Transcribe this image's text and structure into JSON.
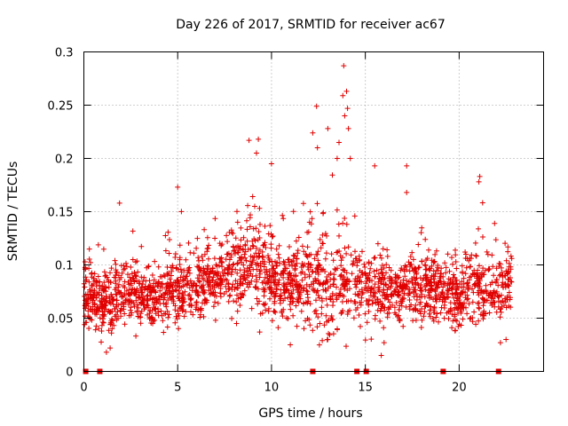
{
  "chart_data": {
    "type": "scatter",
    "title": "Day 226 of 2017, SRMTID for receiver ac67",
    "xlabel": "GPS time / hours",
    "ylabel": "SRMTID / TECUs",
    "xlim": [
      0,
      24.5
    ],
    "ylim": [
      0,
      0.3
    ],
    "grid": true,
    "marker": "+",
    "color": "#e00000",
    "x_ticks": [
      0,
      5,
      10,
      15,
      20
    ],
    "x_tick_labels": [
      "0",
      "5",
      "10",
      "15",
      "20"
    ],
    "y_ticks": [
      0,
      0.05,
      0.1,
      0.15,
      0.2,
      0.25,
      0.3
    ],
    "y_tick_labels": [
      "0",
      "0.05",
      "0.1",
      "0.15",
      "0.2",
      "0.25",
      "0.3"
    ],
    "zero_markers_x": [
      0.1,
      0.85,
      12.2,
      14.55,
      15.05,
      19.15,
      22.1
    ],
    "envelope": {
      "x": [
        0,
        1,
        2,
        3,
        4,
        5,
        6,
        7,
        8,
        9,
        10,
        11,
        12,
        13,
        14,
        15,
        16,
        17,
        18,
        19,
        20,
        21,
        22,
        22.8
      ],
      "median": [
        0.07,
        0.065,
        0.075,
        0.072,
        0.07,
        0.078,
        0.082,
        0.085,
        0.095,
        0.105,
        0.085,
        0.08,
        0.09,
        0.075,
        0.085,
        0.085,
        0.075,
        0.075,
        0.08,
        0.075,
        0.07,
        0.08,
        0.075,
        0.085
      ],
      "spread": [
        0.025,
        0.03,
        0.03,
        0.028,
        0.025,
        0.03,
        0.03,
        0.03,
        0.035,
        0.04,
        0.035,
        0.03,
        0.045,
        0.045,
        0.04,
        0.04,
        0.03,
        0.03,
        0.03,
        0.03,
        0.03,
        0.035,
        0.03,
        0.03
      ]
    },
    "n_points": 2300,
    "peaks": [
      {
        "x": 1.9,
        "y": 0.158
      },
      {
        "x": 5.0,
        "y": 0.173
      },
      {
        "x": 8.8,
        "y": 0.217
      },
      {
        "x": 9.3,
        "y": 0.218
      },
      {
        "x": 12.2,
        "y": 0.224
      },
      {
        "x": 12.4,
        "y": 0.249
      },
      {
        "x": 13.0,
        "y": 0.228
      },
      {
        "x": 13.8,
        "y": 0.259
      },
      {
        "x": 13.85,
        "y": 0.287
      },
      {
        "x": 14.0,
        "y": 0.263
      },
      {
        "x": 14.05,
        "y": 0.247
      },
      {
        "x": 14.1,
        "y": 0.228
      },
      {
        "x": 13.6,
        "y": 0.215
      },
      {
        "x": 13.5,
        "y": 0.2
      },
      {
        "x": 15.5,
        "y": 0.193
      },
      {
        "x": 17.2,
        "y": 0.193
      },
      {
        "x": 17.2,
        "y": 0.168
      },
      {
        "x": 21.1,
        "y": 0.183
      },
      {
        "x": 21.05,
        "y": 0.178
      },
      {
        "x": 9.2,
        "y": 0.205
      },
      {
        "x": 10.0,
        "y": 0.195
      },
      {
        "x": 12.45,
        "y": 0.21
      },
      {
        "x": 13.9,
        "y": 0.24
      },
      {
        "x": 14.2,
        "y": 0.2
      }
    ],
    "dips": [
      {
        "x": 1.2,
        "y": 0.018
      },
      {
        "x": 1.4,
        "y": 0.022
      },
      {
        "x": 15.85,
        "y": 0.015
      },
      {
        "x": 16.0,
        "y": 0.027
      },
      {
        "x": 11.0,
        "y": 0.025
      },
      {
        "x": 13.0,
        "y": 0.03
      },
      {
        "x": 22.2,
        "y": 0.027
      },
      {
        "x": 22.5,
        "y": 0.03
      }
    ]
  }
}
